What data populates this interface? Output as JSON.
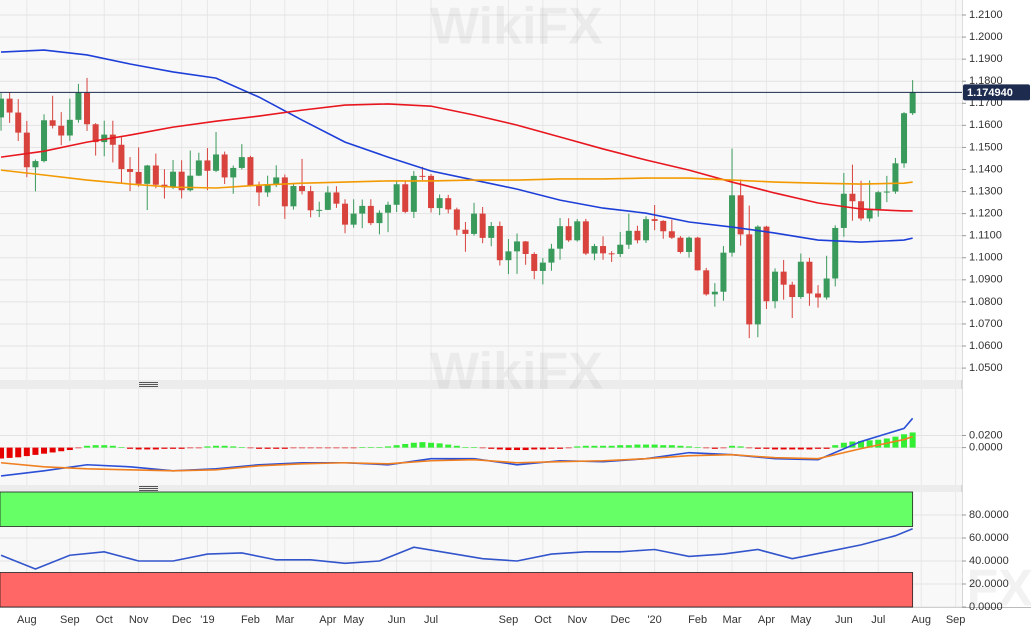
{
  "chart_data": [
    {
      "type": "candlestick",
      "watermark": "WikiFX",
      "xlim": [
        -0.12,
        111.74
      ],
      "ylim": [
        1.0446,
        1.2168
      ],
      "yticks": [
        {
          "value": 1.05,
          "label": "1.0500"
        },
        {
          "value": 1.06,
          "label": "1.0600"
        },
        {
          "value": 1.07,
          "label": "1.0700"
        },
        {
          "value": 1.08,
          "label": "1.0800"
        },
        {
          "value": 1.09,
          "label": "1.0900"
        },
        {
          "value": 1.1,
          "label": "1.1000"
        },
        {
          "value": 1.11,
          "label": "1.1100"
        },
        {
          "value": 1.12,
          "label": "1.1200"
        },
        {
          "value": 1.13,
          "label": "1.1300"
        },
        {
          "value": 1.14,
          "label": "1.1400"
        },
        {
          "value": 1.15,
          "label": "1.1500"
        },
        {
          "value": 1.16,
          "label": "1.1600"
        },
        {
          "value": 1.17,
          "label": "1.1700"
        },
        {
          "value": 1.18,
          "label": "1.1800"
        },
        {
          "value": 1.19,
          "label": "1.1900"
        },
        {
          "value": 1.2,
          "label": "1.2000"
        },
        {
          "value": 1.21,
          "label": "1.2100"
        }
      ],
      "grid": true,
      "up_color": "#3a9a5c",
      "down_color": "#d8433d",
      "last_price": {
        "value": 1.17494,
        "label": "1.174940"
      },
      "open": [
        1.1636,
        1.1721,
        1.1658,
        1.1567,
        1.141,
        1.1438,
        1.1623,
        1.1598,
        1.1554,
        1.1625,
        1.1747,
        1.1605,
        1.1524,
        1.1558,
        1.1512,
        1.1402,
        1.1389,
        1.1335,
        1.1418,
        1.1331,
        1.1319,
        1.139,
        1.1306,
        1.1372,
        1.1441,
        1.1394,
        1.1468,
        1.1364,
        1.1407,
        1.1456,
        1.1325,
        1.1296,
        1.1334,
        1.1364,
        1.1233,
        1.1325,
        1.1302,
        1.1215,
        1.1217,
        1.1296,
        1.1245,
        1.115,
        1.12,
        1.1235,
        1.1157,
        1.1204,
        1.124,
        1.1333,
        1.1208,
        1.1371,
        1.1371,
        1.1225,
        1.127,
        1.1219,
        1.1127,
        1.1108,
        1.12,
        1.109,
        1.1144,
        1.0989,
        1.1029,
        1.1074,
        1.1017,
        1.094,
        1.0978,
        1.1041,
        1.1143,
        1.1079,
        1.1165,
        1.1019,
        1.1053,
        1.102,
        1.1017,
        1.1059,
        1.1122,
        1.1079,
        1.1175,
        1.1167,
        1.112,
        1.1091,
        1.1026,
        1.1091,
        1.0943,
        1.0834,
        1.0846,
        1.1023,
        1.1283,
        1.1106,
        1.0698,
        1.1141,
        1.0803,
        1.0937,
        1.0878,
        1.0822,
        1.0982,
        1.0838,
        1.082,
        1.0906,
        1.1135,
        1.129,
        1.1256,
        1.1178,
        1.1219,
        1.1297,
        1.13,
        1.1428,
        1.1655
      ],
      "high": [
        1.1746,
        1.175,
        1.1719,
        1.162,
        1.1445,
        1.165,
        1.1734,
        1.166,
        1.1721,
        1.1788,
        1.1815,
        1.161,
        1.1621,
        1.1621,
        1.1546,
        1.1456,
        1.15,
        1.1421,
        1.1472,
        1.1401,
        1.1443,
        1.1442,
        1.1486,
        1.1476,
        1.1497,
        1.157,
        1.1481,
        1.1418,
        1.1515,
        1.1462,
        1.1345,
        1.1372,
        1.1419,
        1.1377,
        1.1339,
        1.1448,
        1.1326,
        1.1254,
        1.1324,
        1.1324,
        1.1265,
        1.1265,
        1.1264,
        1.1265,
        1.1215,
        1.1254,
        1.1348,
        1.1348,
        1.1393,
        1.1412,
        1.1379,
        1.1287,
        1.1285,
        1.1227,
        1.1162,
        1.1249,
        1.123,
        1.1162,
        1.1164,
        1.1085,
        1.111,
        1.1076,
        1.1025,
        1.0999,
        1.1063,
        1.118,
        1.1179,
        1.1175,
        1.1176,
        1.1063,
        1.1097,
        1.103,
        1.1117,
        1.12,
        1.1145,
        1.1188,
        1.1239,
        1.117,
        1.1172,
        1.1098,
        1.1096,
        1.1095,
        1.0954,
        1.0885,
        1.1053,
        1.1495,
        1.1355,
        1.1236,
        1.1147,
        1.1145,
        1.0952,
        1.099,
        1.0891,
        1.1019,
        1.1,
        1.0876,
        1.1009,
        1.1147,
        1.1384,
        1.1422,
        1.1349,
        1.135,
        1.1303,
        1.1371,
        1.1452,
        1.166,
        1.1805
      ],
      "low": [
        1.1576,
        1.1611,
        1.1529,
        1.1365,
        1.1301,
        1.1432,
        1.1586,
        1.151,
        1.153,
        1.1612,
        1.1575,
        1.1463,
        1.146,
        1.1432,
        1.1336,
        1.1302,
        1.1322,
        1.1216,
        1.1315,
        1.1268,
        1.1311,
        1.1269,
        1.13,
        1.137,
        1.1306,
        1.1388,
        1.1334,
        1.129,
        1.14,
        1.1323,
        1.1234,
        1.1276,
        1.132,
        1.1176,
        1.1218,
        1.1287,
        1.1183,
        1.1184,
        1.1216,
        1.1226,
        1.1111,
        1.1136,
        1.1134,
        1.1148,
        1.1106,
        1.1116,
        1.1207,
        1.1202,
        1.118,
        1.1352,
        1.1205,
        1.1193,
        1.1201,
        1.1101,
        1.1027,
        1.11,
        1.1066,
        1.1052,
        1.0965,
        1.0926,
        1.0927,
        1.0968,
        1.0903,
        1.0879,
        1.0941,
        1.0991,
        1.1072,
        1.1073,
        1.1012,
        1.0989,
        1.0991,
        1.0981,
        1.1003,
        1.104,
        1.1065,
        1.1067,
        1.1125,
        1.1086,
        1.1085,
        1.1019,
        1.1001,
        1.0942,
        1.0828,
        1.0778,
        1.0805,
        1.1005,
        1.1055,
        1.0636,
        1.064,
        1.0768,
        1.0771,
        1.081,
        1.0727,
        1.0814,
        1.0782,
        1.0774,
        1.081,
        1.087,
        1.1095,
        1.1168,
        1.1168,
        1.1164,
        1.1186,
        1.1252,
        1.129,
        1.1408,
        1.1647
      ],
      "close": [
        1.1721,
        1.1658,
        1.1567,
        1.141,
        1.1438,
        1.1623,
        1.1598,
        1.1554,
        1.1625,
        1.1747,
        1.1605,
        1.1524,
        1.1558,
        1.1512,
        1.1402,
        1.1389,
        1.1335,
        1.1418,
        1.1331,
        1.1319,
        1.139,
        1.1306,
        1.1372,
        1.1441,
        1.1394,
        1.1468,
        1.1364,
        1.1407,
        1.1456,
        1.1325,
        1.1296,
        1.1334,
        1.1364,
        1.1233,
        1.1325,
        1.1302,
        1.1215,
        1.1217,
        1.1296,
        1.1245,
        1.115,
        1.12,
        1.1235,
        1.1157,
        1.1204,
        1.124,
        1.1333,
        1.1208,
        1.1371,
        1.1369,
        1.1225,
        1.127,
        1.1219,
        1.1127,
        1.1108,
        1.12,
        1.109,
        1.1144,
        1.0989,
        1.1029,
        1.1074,
        1.1017,
        1.094,
        1.0978,
        1.1041,
        1.1143,
        1.1079,
        1.1165,
        1.1019,
        1.1053,
        1.102,
        1.1017,
        1.1059,
        1.1122,
        1.1079,
        1.1175,
        1.1167,
        1.112,
        1.1091,
        1.1026,
        1.1091,
        1.0943,
        1.0834,
        1.0846,
        1.1023,
        1.1283,
        1.1106,
        1.0698,
        1.1141,
        1.0803,
        1.0937,
        1.0878,
        1.0822,
        1.0982,
        1.0838,
        1.082,
        1.0906,
        1.1135,
        1.129,
        1.1256,
        1.1178,
        1.1219,
        1.1297,
        1.13,
        1.1428,
        1.1655,
        1.17494
      ],
      "series": [
        {
          "color": "#1d3fd8",
          "x": [
            0,
            5,
            10,
            15,
            20,
            25,
            30,
            35,
            40,
            45,
            50,
            55,
            60,
            65,
            70,
            75,
            80,
            85,
            90,
            95,
            100,
            105,
            106
          ],
          "values": [
            1.1932,
            1.1941,
            1.1919,
            1.1878,
            1.1842,
            1.1814,
            1.1728,
            1.1624,
            1.1524,
            1.1456,
            1.1393,
            1.1352,
            1.1311,
            1.1261,
            1.1225,
            1.1202,
            1.1162,
            1.1139,
            1.1112,
            1.108,
            1.1071,
            1.108,
            1.1089
          ]
        },
        {
          "color": "#e8171f",
          "x": [
            0,
            5,
            10,
            15,
            20,
            25,
            30,
            35,
            40,
            45,
            50,
            55,
            60,
            65,
            70,
            75,
            80,
            85,
            90,
            95,
            100,
            105,
            106
          ],
          "values": [
            1.1456,
            1.1483,
            1.1524,
            1.1556,
            1.1592,
            1.1619,
            1.1642,
            1.1669,
            1.1692,
            1.1697,
            1.1687,
            1.1647,
            1.1601,
            1.1547,
            1.1493,
            1.1443,
            1.1397,
            1.1343,
            1.1293,
            1.1248,
            1.1221,
            1.1212,
            1.1212
          ]
        },
        {
          "color": "#f29a00",
          "x": [
            0,
            5,
            10,
            15,
            20,
            25,
            30,
            35,
            40,
            45,
            50,
            55,
            60,
            65,
            70,
            75,
            80,
            85,
            90,
            95,
            100,
            105,
            106
          ],
          "values": [
            1.1397,
            1.1375,
            1.1352,
            1.1334,
            1.132,
            1.1316,
            1.1329,
            1.1338,
            1.1343,
            1.1348,
            1.1348,
            1.1352,
            1.1352,
            1.1357,
            1.1357,
            1.1361,
            1.1361,
            1.1352,
            1.1343,
            1.1338,
            1.1334,
            1.1338,
            1.1343
          ]
        }
      ]
    },
    {
      "type": "histogram",
      "xlim": [
        -0.12,
        111.74
      ],
      "ylim": [
        -0.0617,
        0.0967
      ],
      "yticks": [
        {
          "value": 0.02,
          "label": "0.0200"
        },
        {
          "value": 0,
          "label": "0.0000"
        }
      ],
      "grid": true,
      "pos_color": "#33ee33",
      "neg_color": "#e60000",
      "values": [
        -0.018,
        -0.017,
        -0.016,
        -0.014,
        -0.012,
        -0.01,
        -0.008,
        -0.006,
        -0.004,
        -0.001,
        0.003,
        0.004,
        0.004,
        0.003,
        0.001,
        -0.002,
        -0.003,
        -0.003,
        -0.003,
        -0.002,
        -0.002,
        -0.002,
        -0.001,
        -0.001,
        0.002,
        0.003,
        0.003,
        0.002,
        0.001,
        -0.001,
        -0.002,
        -0.002,
        -0.002,
        -0.002,
        -0.001,
        -0.001,
        -0.001,
        -0.001,
        -0.001,
        -0.001,
        -0.001,
        -0.001,
        0.001,
        0.001,
        0.001,
        0.002,
        0.004,
        0.006,
        0.008,
        0.009,
        0.008,
        0.007,
        0.005,
        0.003,
        0.001,
        0.001,
        -0.001,
        -0.002,
        -0.003,
        -0.004,
        -0.004,
        -0.004,
        -0.003,
        -0.003,
        -0.002,
        -0.002,
        -0.001,
        0.002,
        0.003,
        0.003,
        0.003,
        0.003,
        0.004,
        0.004,
        0.005,
        0.005,
        0.005,
        0.004,
        0.004,
        0.003,
        0.002,
        0.001,
        -0.001,
        -0.002,
        -0.001,
        0.003,
        0.002,
        -0.001,
        -0.002,
        -0.002,
        -0.003,
        -0.003,
        -0.003,
        -0.003,
        -0.003,
        -0.002,
        -0.002,
        0.004,
        0.008,
        0.01,
        0.011,
        0.012,
        0.013,
        0.015,
        0.018,
        0.022,
        0.025
      ],
      "series": [
        {
          "color": "#2b4fd6",
          "x": [
            0,
            5,
            10,
            15,
            20,
            25,
            30,
            35,
            40,
            45,
            50,
            55,
            60,
            65,
            70,
            75,
            80,
            85,
            90,
            95,
            100,
            105,
            106
          ],
          "values": [
            -0.0467,
            -0.0383,
            -0.0283,
            -0.0317,
            -0.0383,
            -0.035,
            -0.0283,
            -0.025,
            -0.025,
            -0.0283,
            -0.0183,
            -0.0183,
            -0.0283,
            -0.0217,
            -0.0233,
            -0.0183,
            -0.0083,
            -0.0117,
            -0.0183,
            -0.02,
            0.01,
            0.0317,
            0.0483
          ]
        },
        {
          "color": "#f07f1f",
          "x": [
            0,
            5,
            10,
            15,
            20,
            25,
            30,
            35,
            40,
            45,
            50,
            55,
            60,
            65,
            70,
            75,
            80,
            85,
            90,
            95,
            100,
            105,
            106
          ],
          "values": [
            -0.025,
            -0.0317,
            -0.035,
            -0.0367,
            -0.0383,
            -0.0367,
            -0.03,
            -0.0267,
            -0.025,
            -0.0267,
            -0.0217,
            -0.02,
            -0.025,
            -0.0233,
            -0.0217,
            -0.0183,
            -0.0133,
            -0.0117,
            -0.0167,
            -0.0183,
            -0.0017,
            0.0133,
            0.0183
          ]
        }
      ]
    },
    {
      "type": "line",
      "xlim": [
        -0.12,
        111.74
      ],
      "ylim": [
        0,
        100
      ],
      "yticks": [
        {
          "value": 80,
          "label": "80.0000"
        },
        {
          "value": 60,
          "label": "60.0000"
        },
        {
          "value": 40,
          "label": "40.0000"
        },
        {
          "value": 20,
          "label": "20.0000"
        },
        {
          "value": 0,
          "label": "0.0000"
        }
      ],
      "xticks": [
        {
          "value": 3,
          "label": "Aug"
        },
        {
          "value": 8,
          "label": "Sep"
        },
        {
          "value": 12,
          "label": "Oct"
        },
        {
          "value": 16,
          "label": "Nov"
        },
        {
          "value": 21,
          "label": "Dec"
        },
        {
          "value": 24,
          "label": "'19"
        },
        {
          "value": 29,
          "label": "Feb"
        },
        {
          "value": 33,
          "label": "Mar"
        },
        {
          "value": 38,
          "label": "Apr"
        },
        {
          "value": 41,
          "label": "May"
        },
        {
          "value": 46,
          "label": "Jun"
        },
        {
          "value": 50,
          "label": "Jul"
        },
        {
          "value": 59,
          "label": "Sep"
        },
        {
          "value": 63,
          "label": "Oct"
        },
        {
          "value": 67,
          "label": "Nov"
        },
        {
          "value": 72,
          "label": "Dec"
        },
        {
          "value": 76,
          "label": "'20"
        },
        {
          "value": 81,
          "label": "Feb"
        },
        {
          "value": 85,
          "label": "Mar"
        },
        {
          "value": 89,
          "label": "Apr"
        },
        {
          "value": 93,
          "label": "May"
        },
        {
          "value": 98,
          "label": "Jun"
        },
        {
          "value": 102,
          "label": "Jul"
        },
        {
          "value": 107,
          "label": "Aug"
        },
        {
          "value": 111,
          "label": "Sep"
        }
      ],
      "grid": true,
      "bands": [
        {
          "from": 70,
          "to": 100,
          "color": "#66ff66"
        },
        {
          "from": 0,
          "to": 30,
          "color": "#ff6666"
        }
      ],
      "series": [
        {
          "color": "#3355cc",
          "x": [
            0,
            4,
            8,
            12,
            16,
            20,
            24,
            28,
            32,
            36,
            40,
            44,
            48,
            52,
            56,
            60,
            64,
            68,
            72,
            76,
            80,
            84,
            88,
            92,
            96,
            100,
            104,
            106
          ],
          "values": [
            45,
            33,
            45,
            48,
            40,
            40,
            46,
            47,
            41,
            41,
            38,
            40,
            52,
            47,
            42,
            40,
            46,
            48,
            48,
            50,
            44,
            46,
            50,
            42,
            48,
            54,
            62,
            68
          ]
        }
      ]
    }
  ]
}
